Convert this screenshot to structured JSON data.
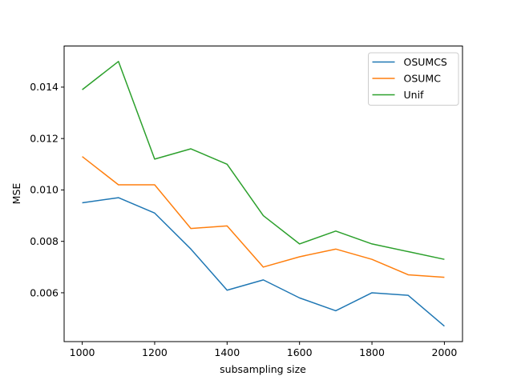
{
  "figure": {
    "background": "#ffffff",
    "frame_color": "#000000"
  },
  "chart_data": {
    "type": "line",
    "title": "",
    "xlabel": "subsampling size",
    "ylabel": "MSE",
    "x": [
      1000,
      1100,
      1200,
      1300,
      1400,
      1500,
      1600,
      1700,
      1800,
      1900,
      2000
    ],
    "series": [
      {
        "name": "OSUMCS",
        "color": "#1f77b4",
        "values": [
          0.0095,
          0.0097,
          0.0091,
          0.0077,
          0.0061,
          0.0065,
          0.0058,
          0.0053,
          0.006,
          0.0059,
          0.0047
        ]
      },
      {
        "name": "OSUMC",
        "color": "#ff7f0e",
        "values": [
          0.0113,
          0.0102,
          0.0102,
          0.0085,
          0.0086,
          0.007,
          0.0074,
          0.0077,
          0.0073,
          0.0067,
          0.0066
        ]
      },
      {
        "name": "Unif",
        "color": "#2ca02c",
        "values": [
          0.0139,
          0.015,
          0.0112,
          0.0116,
          0.011,
          0.009,
          0.0079,
          0.0084,
          0.0079,
          0.0076,
          0.0073
        ]
      }
    ],
    "xlim": [
      950,
      2050
    ],
    "ylim": [
      0.0041,
      0.0156
    ],
    "xticks": {
      "values": [
        1000,
        1200,
        1400,
        1600,
        1800,
        2000
      ],
      "labels": [
        "1000",
        "1200",
        "1400",
        "1600",
        "1800",
        "2000"
      ]
    },
    "yticks": {
      "values": [
        0.006,
        0.008,
        0.01,
        0.012,
        0.014
      ],
      "labels": [
        "0.006",
        "0.008",
        "0.010",
        "0.012",
        "0.014"
      ]
    },
    "grid": false,
    "line_width": 1.5,
    "legend": {
      "position": "upper right",
      "edge_color": "#cccccc",
      "background": "#ffffff",
      "entries": [
        "OSUMCS",
        "OSUMC",
        "Unif"
      ]
    }
  }
}
